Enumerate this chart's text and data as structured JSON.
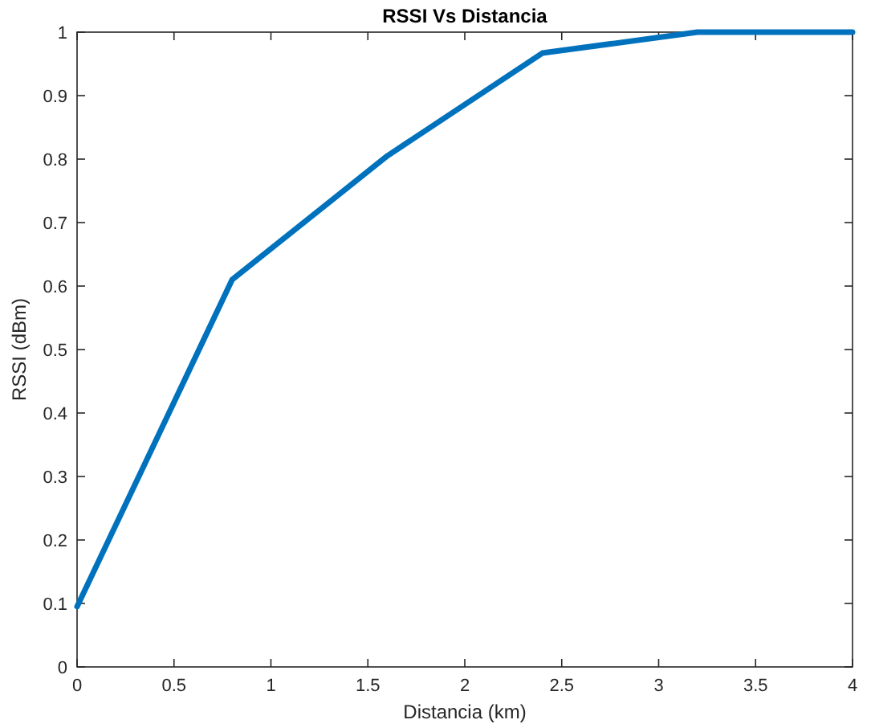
{
  "chart_data": {
    "type": "line",
    "title": "RSSI Vs Distancia",
    "xlabel": "Distancia (km)",
    "ylabel": "RSSI (dBm)",
    "x": [
      0,
      0.8,
      1.6,
      2.4,
      3.2,
      4
    ],
    "series": [
      {
        "color": "#0072bd",
        "values": [
          0.095,
          0.61,
          0.805,
          0.967,
          1,
          1
        ]
      }
    ],
    "xlim": [
      0,
      4
    ],
    "xticks": [
      0,
      0.5,
      1,
      1.5,
      2,
      2.5,
      3,
      3.5,
      4
    ],
    "ylim": [
      0,
      1
    ],
    "yticks": [
      0,
      0.1,
      0.2,
      0.3,
      0.4,
      0.5,
      0.6,
      0.7,
      0.8,
      0.9,
      1
    ],
    "grid": false,
    "marker": "none",
    "line_style": "solid"
  }
}
